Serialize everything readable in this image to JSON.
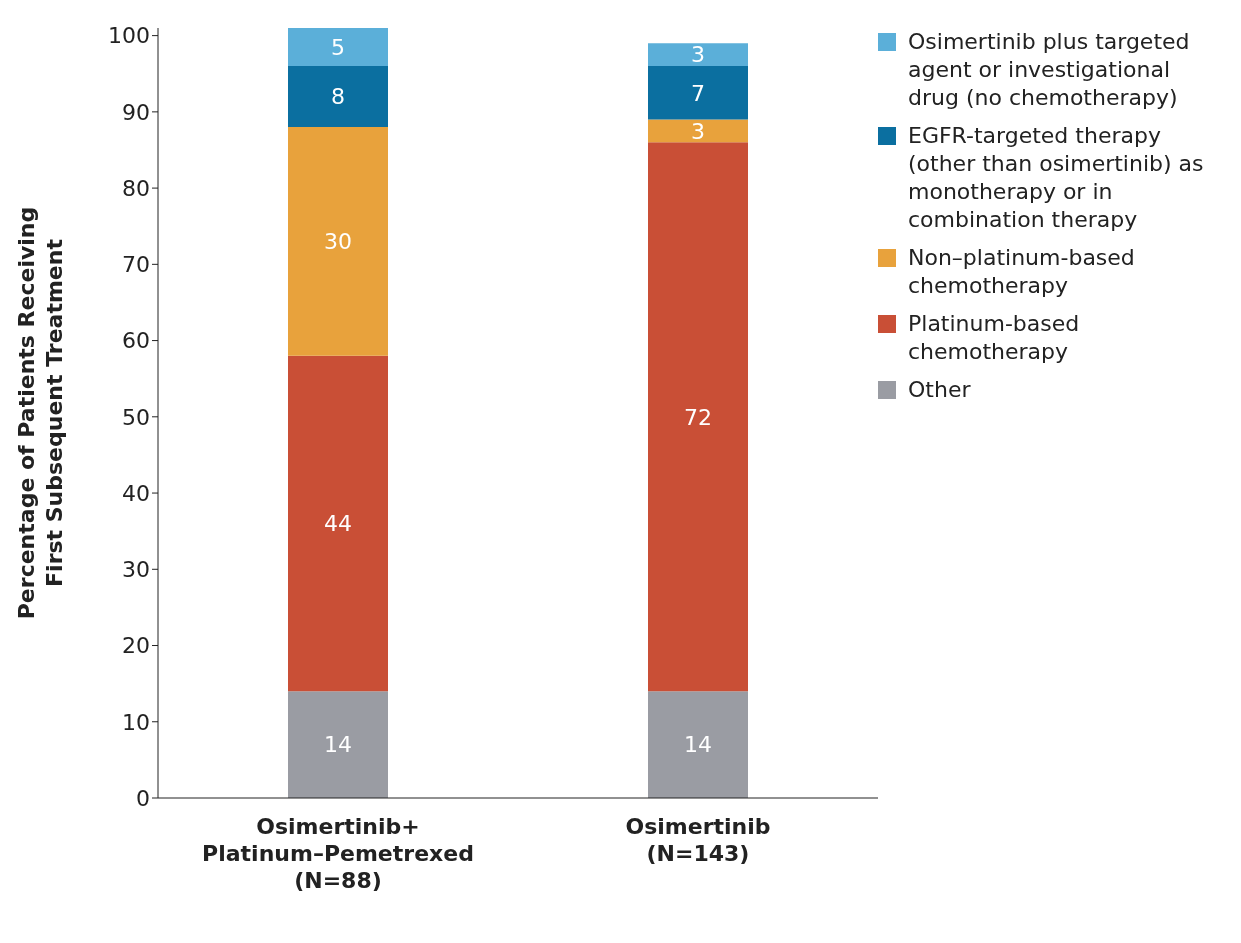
{
  "chart_data": {
    "type": "bar",
    "stacked": true,
    "ylabel": "Percentage of Patients Receiving First Subsequent Treatment",
    "categories": [
      "Osimertinib+\nPlatinum–Pemetrexed\n(N=88)",
      "Osimertinib\n(N=143)"
    ],
    "series": [
      {
        "name": "Other",
        "color": "#9a9ca3",
        "values": [
          14,
          14
        ]
      },
      {
        "name": "Platinum-based chemotherapy",
        "color": "#c94f36",
        "values": [
          44,
          72
        ]
      },
      {
        "name": "Non–platinum-based chemotherapy",
        "color": "#e8a23c",
        "values": [
          30,
          3
        ]
      },
      {
        "name": "EGFR-targeted therapy (other than osimertinib) as monotherapy or in combination therapy",
        "color": "#0b6fa0",
        "values": [
          8,
          7
        ]
      },
      {
        "name": "Osimertinib plus targeted agent or investigational drug (no chemotherapy)",
        "color": "#5bafd9",
        "values": [
          5,
          3
        ]
      }
    ],
    "ylim": [
      0,
      101
    ],
    "yticks": [
      0,
      10,
      20,
      30,
      40,
      50,
      60,
      70,
      80,
      90,
      100
    ],
    "data_labels": true,
    "legend": "top right"
  }
}
